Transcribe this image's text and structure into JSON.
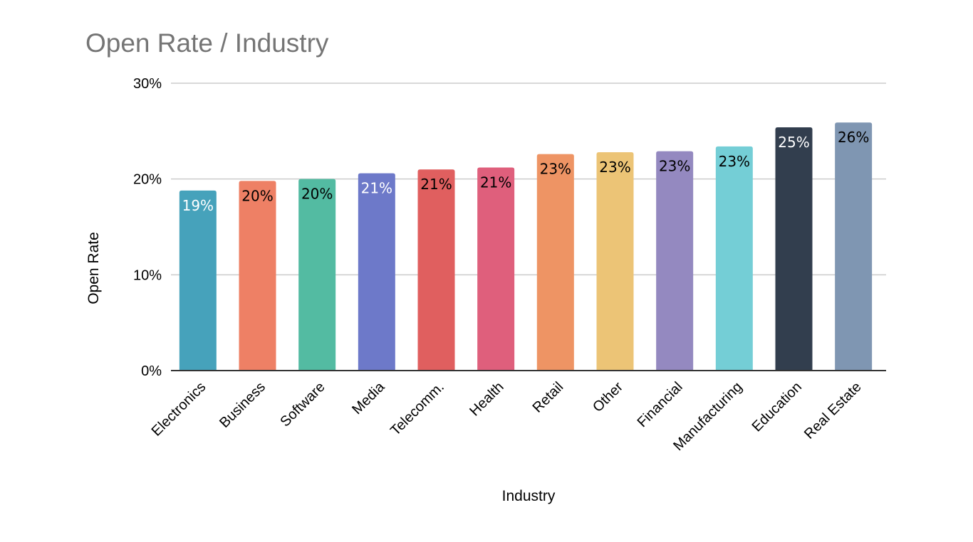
{
  "chart_data": {
    "type": "bar",
    "title": "Open Rate / Industry",
    "xlabel": "Industry",
    "ylabel": "Open Rate",
    "ylim": [
      0,
      30
    ],
    "yticks": [
      "0%",
      "10%",
      "20%",
      "30%"
    ],
    "ytick_values": [
      0,
      10,
      20,
      30
    ],
    "grid": true,
    "legend": "none",
    "categories": [
      "Electronics",
      "Business",
      "Software",
      "Media",
      "Telecomm.",
      "Health",
      "Retail",
      "Other",
      "Financial",
      "Manufacturing",
      "Education",
      "Real Estate"
    ],
    "values": [
      18.8,
      19.8,
      20.0,
      20.6,
      21.0,
      21.2,
      22.6,
      22.8,
      22.9,
      23.4,
      25.4,
      25.9
    ],
    "data_labels": [
      "19%",
      "20%",
      "20%",
      "21%",
      "21%",
      "21%",
      "23%",
      "23%",
      "23%",
      "23%",
      "25%",
      "26%"
    ],
    "colors": [
      "#46a2bb",
      "#ee8065",
      "#53bba2",
      "#6d79c9",
      "#e05f5f",
      "#df5f7c",
      "#ee9464",
      "#ecc476",
      "#9489c0",
      "#74ced6",
      "#323e4e",
      "#7f96b2"
    ],
    "label_colors": [
      "#ffffff",
      "#000000",
      "#000000",
      "#ffffff",
      "#000000",
      "#000000",
      "#000000",
      "#000000",
      "#000000",
      "#000000",
      "#ffffff",
      "#000000"
    ]
  }
}
